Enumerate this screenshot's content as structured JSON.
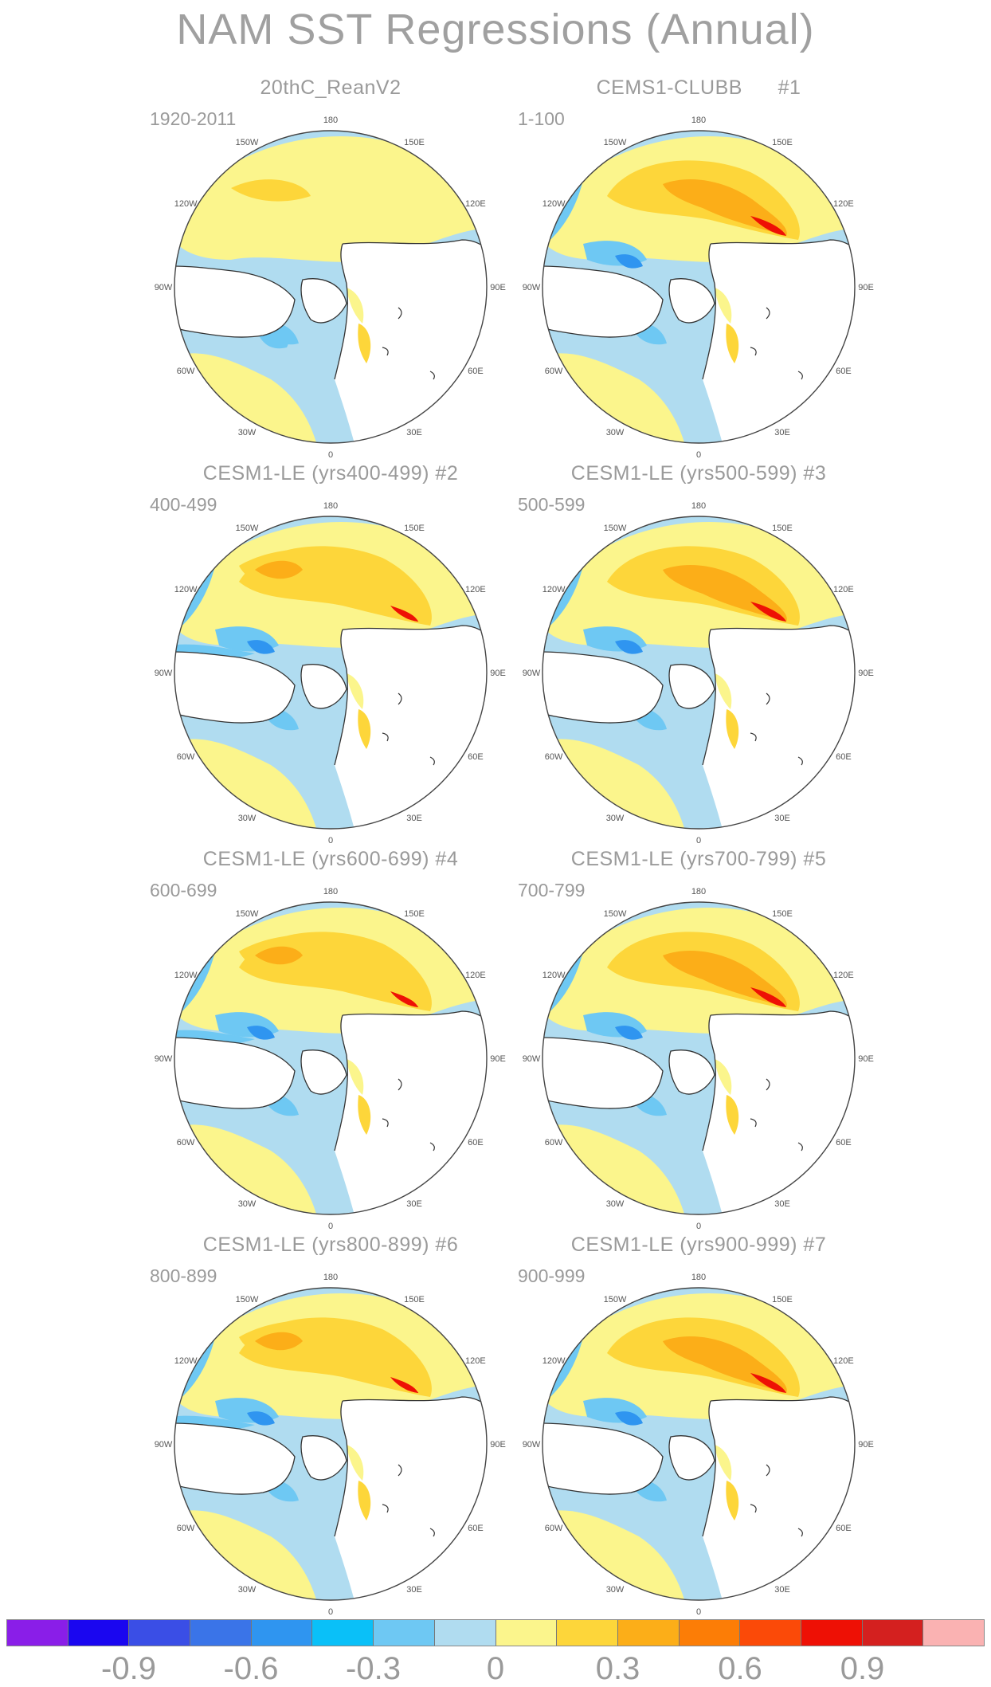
{
  "title": "NAM SST Regressions (Annual)",
  "panels": [
    {
      "title": "20thC_ReanV2",
      "years": "1920-2011",
      "style": 0
    },
    {
      "title": "CEMS1-CLUBB      #1",
      "years": "1-100",
      "style": 1
    },
    {
      "title": "CESM1-LE (yrs400-499) #2",
      "years": "400-499",
      "style": 2
    },
    {
      "title": "CESM1-LE (yrs500-599) #3",
      "years": "500-599",
      "style": 1
    },
    {
      "title": "CESM1-LE (yrs600-699) #4",
      "years": "600-699",
      "style": 2
    },
    {
      "title": "CESM1-LE (yrs700-799) #5",
      "years": "700-799",
      "style": 1
    },
    {
      "title": "CESM1-LE (yrs800-899) #6",
      "years": "800-899",
      "style": 2
    },
    {
      "title": "CESM1-LE (yrs900-999) #7",
      "years": "900-999",
      "style": 1
    }
  ],
  "longitude_labels": [
    "180",
    "150E",
    "120E",
    "90E",
    "60E",
    "30E",
    "0",
    "30W",
    "60W",
    "90W",
    "120W",
    "150W"
  ],
  "colorbar": {
    "colors": [
      "#8a1ee8",
      "#1a06f0",
      "#3a4ee6",
      "#3a74e8",
      "#2f95f0",
      "#0ac0f8",
      "#6ec8f3",
      "#b0dcf0",
      "#fbf58c",
      "#fdd63a",
      "#fcae18",
      "#fc7d06",
      "#fb4a08",
      "#ee1005",
      "#d4201f",
      "#fab2b2"
    ],
    "labels": [
      "-0.9",
      "-0.6",
      "-0.3",
      "0",
      "0.3",
      "0.6",
      "0.9"
    ]
  },
  "colors": {
    "neg_light": "#b0dcf0",
    "neg_mid": "#6ec8f3",
    "neg_strong": "#2f95f0",
    "pos_light": "#fbf58c",
    "pos_mid": "#fdd63a",
    "pos_strong": "#fcae18",
    "pos_max": "#ee1005"
  }
}
